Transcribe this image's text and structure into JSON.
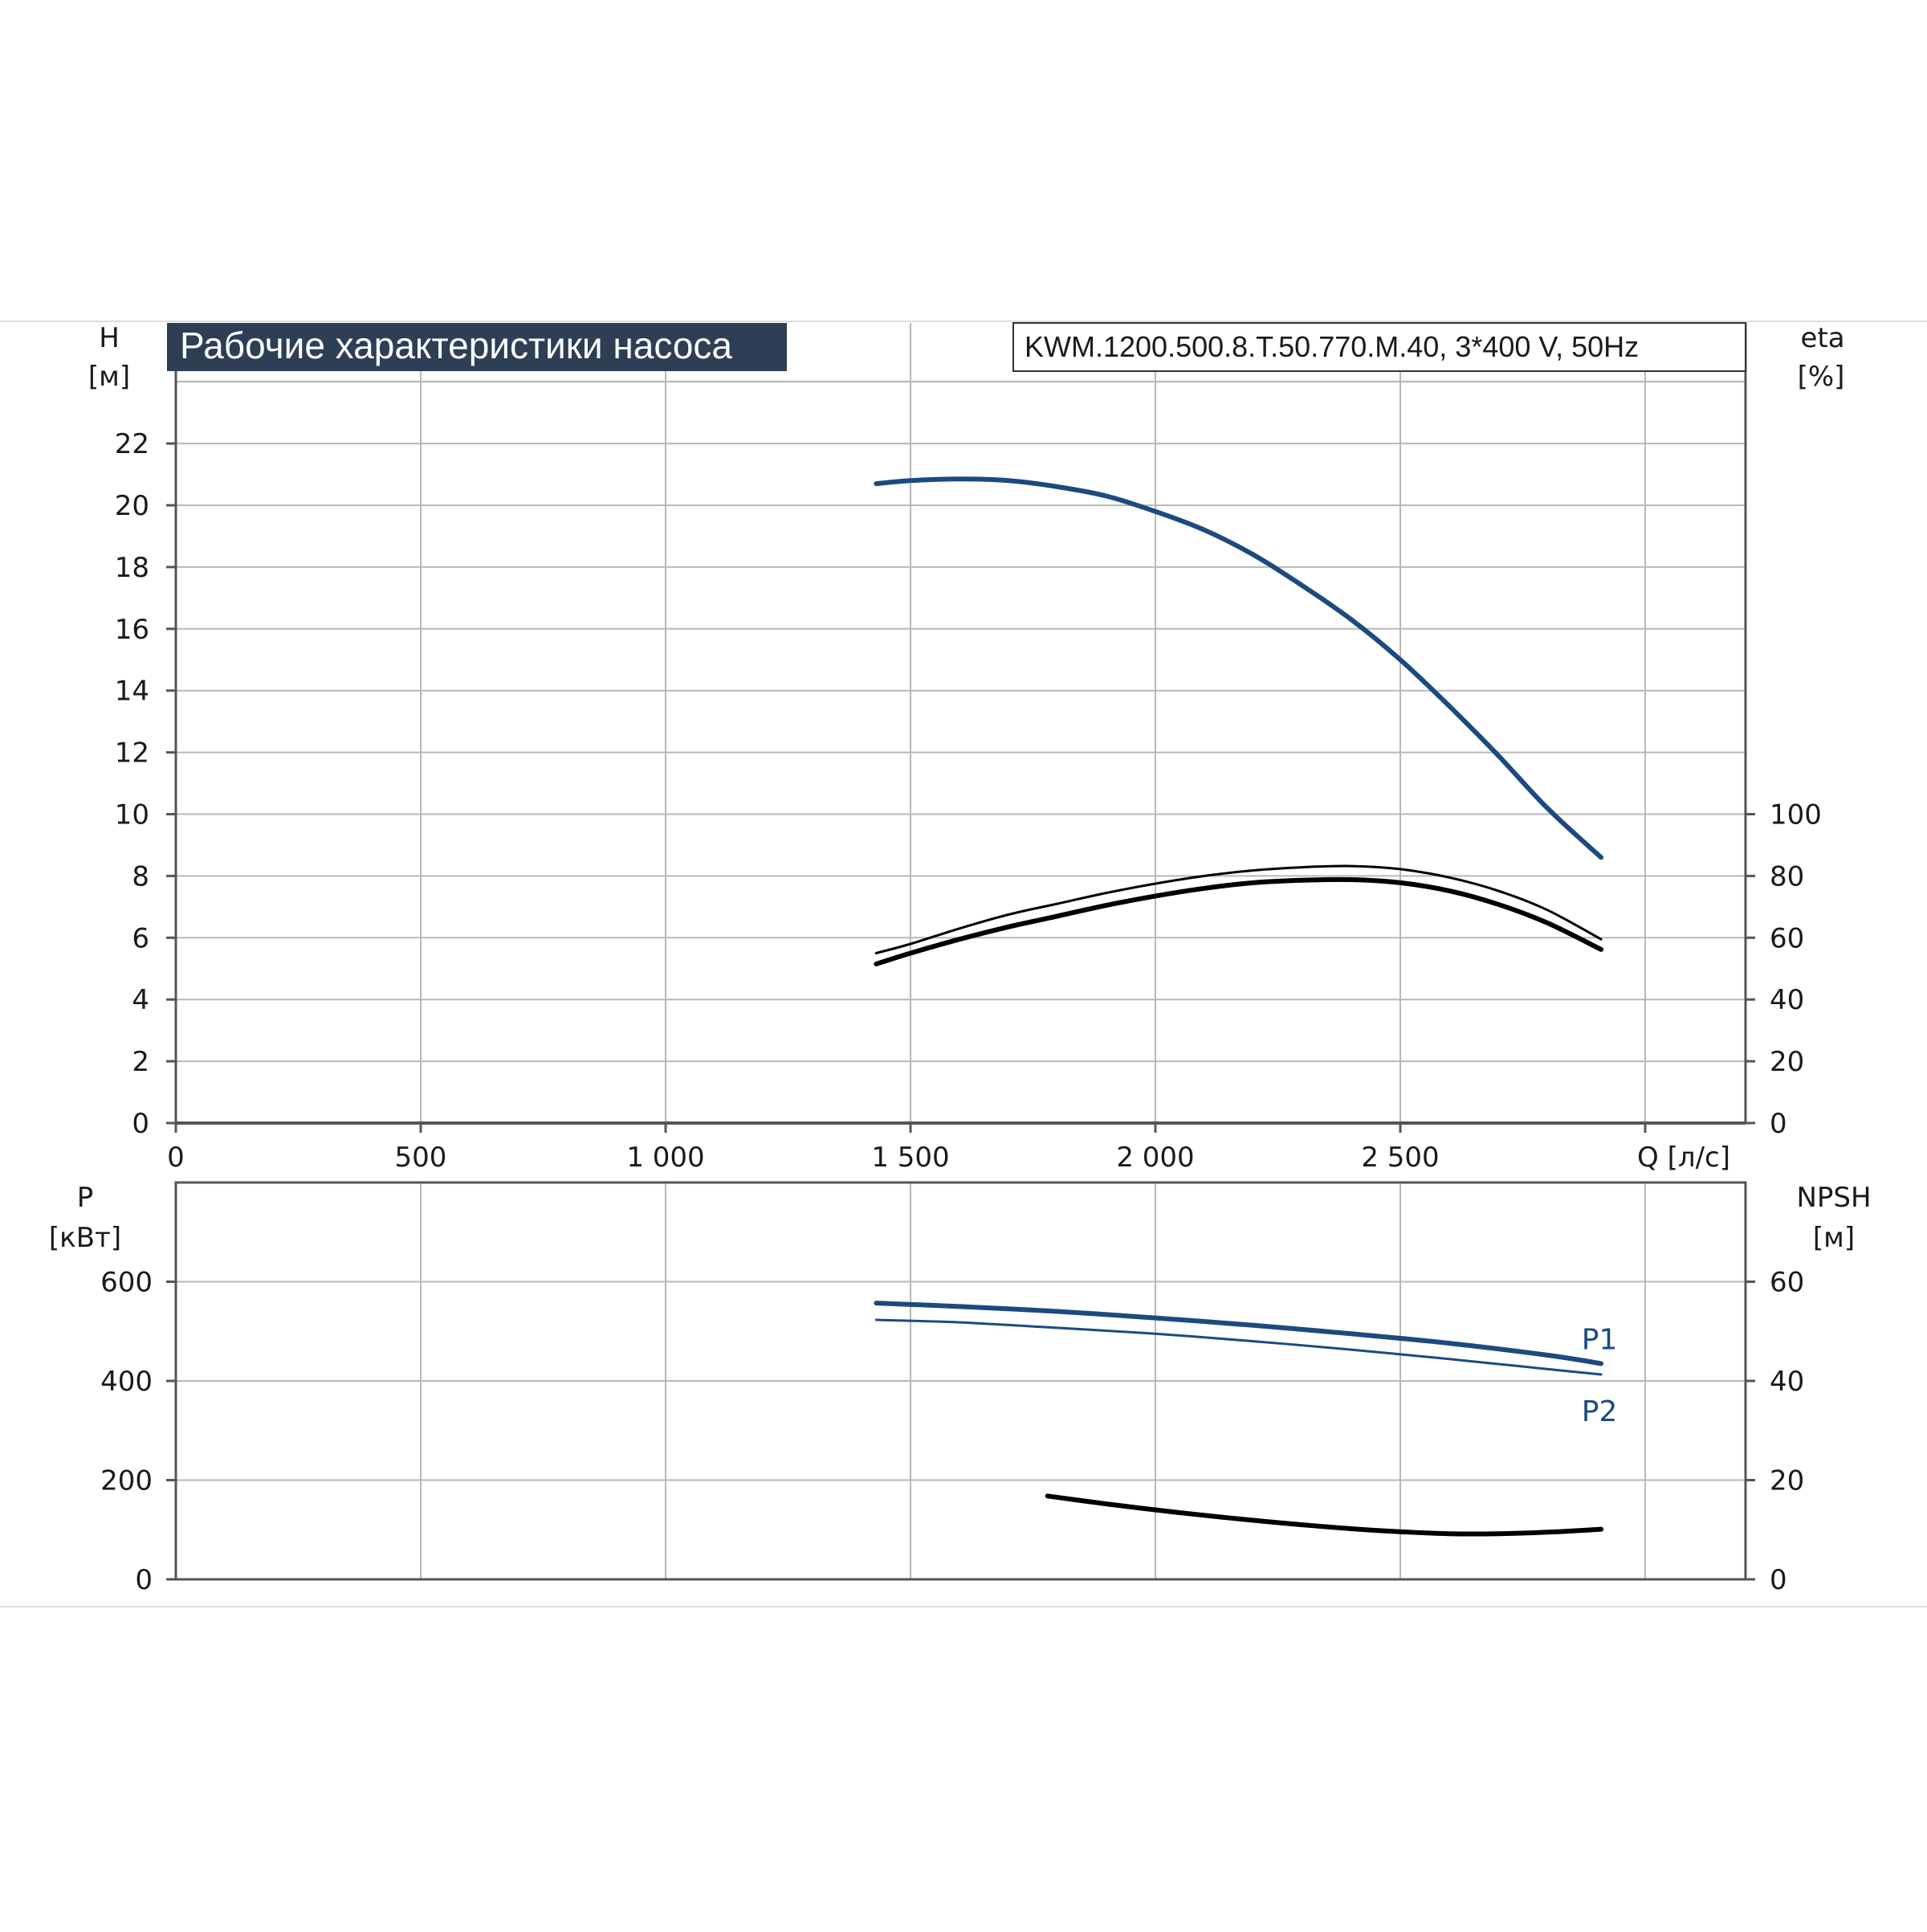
{
  "title": "Рабочие характеристики насоса",
  "model": "KWM.1200.500.8.T.50.770.M.40, 3*400 V, 50Hz",
  "colors": {
    "head": "#1c4a80",
    "power": "#1c4a80",
    "efficiency": "#000000",
    "npsh": "#000000",
    "grid": "#b8b8b8",
    "title_bg": "#2d3e55"
  },
  "chart_data": [
    {
      "type": "line",
      "name": "head-efficiency",
      "x_ticks": [
        "0",
        "500",
        "1 000",
        "1 500",
        "2 000",
        "2 500",
        "Q [л/с]"
      ],
      "x_values": [
        0,
        500,
        1000,
        1500,
        2000,
        2500
      ],
      "xlim": [
        0,
        3200
      ],
      "left_axis": {
        "label": "H",
        "unit": "[м]",
        "ticks": [
          "0",
          "2",
          "4",
          "6",
          "8",
          "10",
          "12",
          "14",
          "16",
          "18",
          "20",
          "22"
        ],
        "lim": [
          0,
          24
        ]
      },
      "right_axis": {
        "label": "eta",
        "unit": "[%]",
        "ticks": [
          "0",
          "20",
          "40",
          "60",
          "80",
          "100"
        ],
        "lim": [
          0,
          240
        ]
      },
      "grid": true,
      "series": [
        {
          "id": "H",
          "axis": "left",
          "color": "#1c4a80",
          "width": 6,
          "x": [
            1430,
            1500,
            1600,
            1700,
            1800,
            1900,
            2000,
            2100,
            2200,
            2300,
            2400,
            2500,
            2600,
            2700,
            2800,
            2910
          ],
          "y": [
            20.7,
            20.8,
            20.85,
            20.8,
            20.6,
            20.3,
            19.8,
            19.2,
            18.4,
            17.4,
            16.3,
            15.0,
            13.5,
            11.9,
            10.2,
            8.6
          ]
        },
        {
          "id": "eta-upper",
          "axis": "right",
          "color": "#000000",
          "width": 3,
          "x": [
            1430,
            1500,
            1600,
            1700,
            1800,
            1900,
            2000,
            2100,
            2200,
            2300,
            2400,
            2500,
            2600,
            2700,
            2800,
            2910
          ],
          "y": [
            55,
            58,
            63,
            67.5,
            71,
            74.5,
            77.5,
            80,
            81.8,
            82.8,
            83.2,
            82.2,
            79.5,
            75.2,
            69,
            59.5
          ]
        },
        {
          "id": "eta-lower",
          "axis": "right",
          "color": "#000000",
          "width": 6,
          "x": [
            1430,
            1500,
            1600,
            1700,
            1800,
            1900,
            2000,
            2100,
            2200,
            2300,
            2400,
            2500,
            2600,
            2700,
            2800,
            2910
          ],
          "y": [
            51.5,
            55,
            59.5,
            63.5,
            67,
            70.5,
            73.5,
            76,
            77.8,
            78.6,
            78.8,
            77.8,
            75.2,
            70.8,
            64.8,
            56.2
          ]
        }
      ]
    },
    {
      "type": "line",
      "name": "power-npsh",
      "xlim": [
        0,
        3200
      ],
      "left_axis": {
        "label": "P",
        "unit": "[кВт]",
        "ticks": [
          "0",
          "200",
          "400",
          "600"
        ],
        "lim": [
          0,
          800
        ]
      },
      "right_axis": {
        "label": "NPSH",
        "unit": "[м]",
        "ticks": [
          "0",
          "20",
          "40",
          "60"
        ],
        "lim": [
          0,
          80
        ]
      },
      "grid": true,
      "series": [
        {
          "id": "P1",
          "label": "P1",
          "axis": "left",
          "color": "#1c4a80",
          "width": 6,
          "x": [
            1430,
            1600,
            1800,
            2000,
            2200,
            2400,
            2600,
            2800,
            2910
          ],
          "y": [
            557,
            550,
            540,
            527,
            512,
            495,
            476,
            452,
            435
          ]
        },
        {
          "id": "P2",
          "label": "P2",
          "axis": "left",
          "color": "#1c4a80",
          "width": 3,
          "x": [
            1430,
            1600,
            1800,
            2000,
            2200,
            2400,
            2600,
            2800,
            2910
          ],
          "y": [
            523,
            518,
            507,
            495,
            480,
            463,
            444,
            424,
            413
          ]
        },
        {
          "id": "NPSH",
          "axis": "right",
          "color": "#000000",
          "width": 6,
          "x": [
            1780,
            1900,
            2000,
            2100,
            2200,
            2300,
            2400,
            2500,
            2600,
            2700,
            2800,
            2910
          ],
          "y": [
            16.8,
            15.2,
            14.0,
            12.9,
            11.9,
            11.0,
            10.2,
            9.6,
            9.2,
            9.2,
            9.5,
            10.1
          ]
        }
      ]
    }
  ]
}
